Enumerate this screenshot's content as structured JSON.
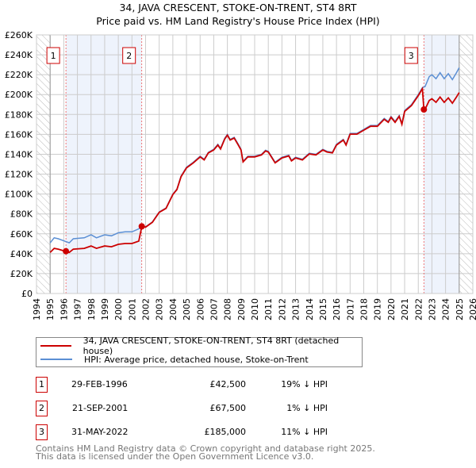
{
  "chart_data": {
    "type": "line",
    "title": "34, JAVA CRESCENT, STOKE-ON-TRENT, ST4 8RT",
    "subtitle": "Price paid vs. HM Land Registry's House Price Index (HPI)",
    "xlim": [
      1994,
      2026
    ],
    "ylim": [
      0,
      260000
    ],
    "x_ticks": [
      "1994",
      "1995",
      "1996",
      "1997",
      "1998",
      "1999",
      "2000",
      "2001",
      "2002",
      "2003",
      "2004",
      "2005",
      "2006",
      "2007",
      "2008",
      "2009",
      "2010",
      "2011",
      "2012",
      "2013",
      "2014",
      "2015",
      "2016",
      "2017",
      "2018",
      "2019",
      "2020",
      "2021",
      "2022",
      "2023",
      "2024",
      "2025",
      "2026"
    ],
    "y_ticks": [
      "£0",
      "£20K",
      "£40K",
      "£60K",
      "£80K",
      "£100K",
      "£120K",
      "£140K",
      "£160K",
      "£180K",
      "£200K",
      "£220K",
      "£240K",
      "£260K"
    ],
    "data_range": [
      1995,
      2025
    ],
    "colors": {
      "property": "#cc0000",
      "hpi": "#5b8fd4",
      "shade": "#eef3fc"
    },
    "series": [
      {
        "name": "HPI: Average price, detached house, Stoke-on-Trent",
        "key": "hpi",
        "points": [
          [
            1995.0,
            51
          ],
          [
            1995.3,
            56
          ],
          [
            1995.6,
            55
          ],
          [
            1996.1,
            52.5
          ],
          [
            1996.4,
            51
          ],
          [
            1996.7,
            55
          ],
          [
            1997.5,
            56
          ],
          [
            1998.0,
            59
          ],
          [
            1998.4,
            56
          ],
          [
            1999.0,
            59
          ],
          [
            1999.5,
            58
          ],
          [
            2000.0,
            61
          ],
          [
            2000.5,
            62
          ],
          [
            2001.0,
            62
          ],
          [
            2001.5,
            65
          ],
          [
            2001.72,
            67.5
          ],
          [
            2002.0,
            67
          ],
          [
            2002.5,
            72
          ],
          [
            2003.0,
            82
          ],
          [
            2003.5,
            86
          ],
          [
            2004.0,
            100
          ],
          [
            2004.3,
            105
          ],
          [
            2004.6,
            118
          ],
          [
            2005.0,
            127
          ],
          [
            2005.5,
            132
          ],
          [
            2006.0,
            138
          ],
          [
            2006.3,
            135
          ],
          [
            2006.6,
            142
          ],
          [
            2007.0,
            145
          ],
          [
            2007.3,
            150
          ],
          [
            2007.5,
            146
          ],
          [
            2007.8,
            156
          ],
          [
            2008.0,
            160
          ],
          [
            2008.2,
            155
          ],
          [
            2008.5,
            157
          ],
          [
            2008.8,
            150
          ],
          [
            2009.0,
            145
          ],
          [
            2009.15,
            133
          ],
          [
            2009.5,
            138
          ],
          [
            2010.0,
            138
          ],
          [
            2010.5,
            140
          ],
          [
            2010.8,
            144
          ],
          [
            2011.0,
            143
          ],
          [
            2011.5,
            132
          ],
          [
            2012.0,
            137
          ],
          [
            2012.5,
            139
          ],
          [
            2012.7,
            134
          ],
          [
            2013.0,
            137
          ],
          [
            2013.5,
            135
          ],
          [
            2014.0,
            141
          ],
          [
            2014.5,
            140
          ],
          [
            2015.0,
            145
          ],
          [
            2015.3,
            143
          ],
          [
            2015.7,
            142
          ],
          [
            2016.0,
            150
          ],
          [
            2016.5,
            155
          ],
          [
            2016.7,
            150
          ],
          [
            2017.0,
            161
          ],
          [
            2017.5,
            161
          ],
          [
            2018.0,
            165
          ],
          [
            2018.5,
            169
          ],
          [
            2019.0,
            169
          ],
          [
            2019.5,
            176
          ],
          [
            2019.8,
            173
          ],
          [
            2020.0,
            178
          ],
          [
            2020.3,
            173
          ],
          [
            2020.6,
            179
          ],
          [
            2020.8,
            171
          ],
          [
            2021.0,
            184
          ],
          [
            2021.5,
            190
          ],
          [
            2022.0,
            200
          ],
          [
            2022.3,
            207
          ],
          [
            2022.5,
            208
          ],
          [
            2022.8,
            218
          ],
          [
            2023.0,
            220
          ],
          [
            2023.3,
            216
          ],
          [
            2023.6,
            222
          ],
          [
            2023.9,
            216
          ],
          [
            2024.2,
            221
          ],
          [
            2024.5,
            215
          ],
          [
            2024.8,
            222
          ],
          [
            2025.0,
            227
          ]
        ]
      },
      {
        "name": "34, JAVA CRESCENT, STOKE-ON-TRENT, ST4 8RT (detached house)",
        "key": "property",
        "ratio_segments": [
          [
            1995.0,
            2001.72,
            0.81
          ],
          [
            2001.72,
            2022.41,
            0.995
          ],
          [
            2022.41,
            2025.0,
            0.89
          ]
        ]
      }
    ],
    "sales": [
      {
        "n": "1",
        "year": 1996.16,
        "value": 42500
      },
      {
        "n": "2",
        "year": 2001.72,
        "value": 67500
      },
      {
        "n": "3",
        "year": 2022.41,
        "value": 185000
      }
    ]
  },
  "legend": {
    "property": "34, JAVA CRESCENT, STOKE-ON-TRENT, ST4 8RT (detached house)",
    "hpi": "HPI: Average price, detached house, Stoke-on-Trent"
  },
  "transactions": [
    {
      "n": "1",
      "date": "29-FEB-1996",
      "price": "£42,500",
      "delta": "19% ↓ HPI"
    },
    {
      "n": "2",
      "date": "21-SEP-2001",
      "price": "£67,500",
      "delta": "1% ↓ HPI"
    },
    {
      "n": "3",
      "date": "31-MAY-2022",
      "price": "£185,000",
      "delta": "11% ↓ HPI"
    }
  ],
  "footer": {
    "line1": "Contains HM Land Registry data © Crown copyright and database right 2025.",
    "line2": "This data is licensed under the Open Government Licence v3.0."
  }
}
